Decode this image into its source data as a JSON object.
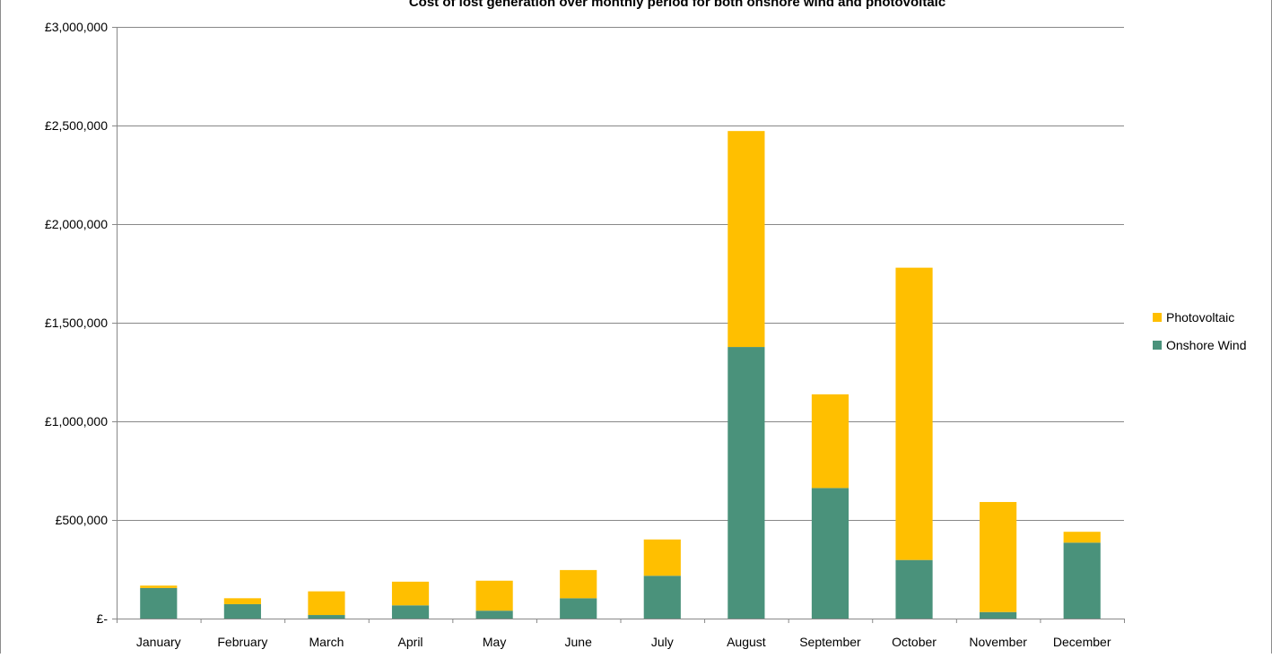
{
  "chart_data": {
    "type": "bar",
    "stacked": true,
    "title": "Cost of lost generation over monthly period for both onshore wind and photovoltaic",
    "xlabel": "",
    "ylabel": "",
    "ylim": [
      0,
      3000000
    ],
    "y_ticks": [
      0,
      500000,
      1000000,
      1500000,
      2000000,
      2500000,
      3000000
    ],
    "y_tick_labels": [
      "£-",
      "£500,000",
      "£1,000,000",
      "£1,500,000",
      "£2,000,000",
      "£2,500,000",
      "£3,000,000"
    ],
    "grid": true,
    "legend_position": "right",
    "categories": [
      "January",
      "February",
      "March",
      "April",
      "May",
      "June",
      "July",
      "August",
      "September",
      "October",
      "November",
      "December"
    ],
    "series": [
      {
        "name": "Onshore Wind",
        "color": "#4a927b",
        "values": [
          155000,
          73000,
          18000,
          67000,
          40000,
          103000,
          217000,
          1377000,
          662000,
          297000,
          33000,
          385000
        ]
      },
      {
        "name": "Photovoltaic",
        "color": "#ffbf00",
        "values": [
          12000,
          30000,
          120000,
          120000,
          152000,
          143000,
          184000,
          1095000,
          475000,
          1482000,
          558000,
          55000
        ]
      }
    ],
    "legend_order": [
      "Photovoltaic",
      "Onshore Wind"
    ]
  }
}
